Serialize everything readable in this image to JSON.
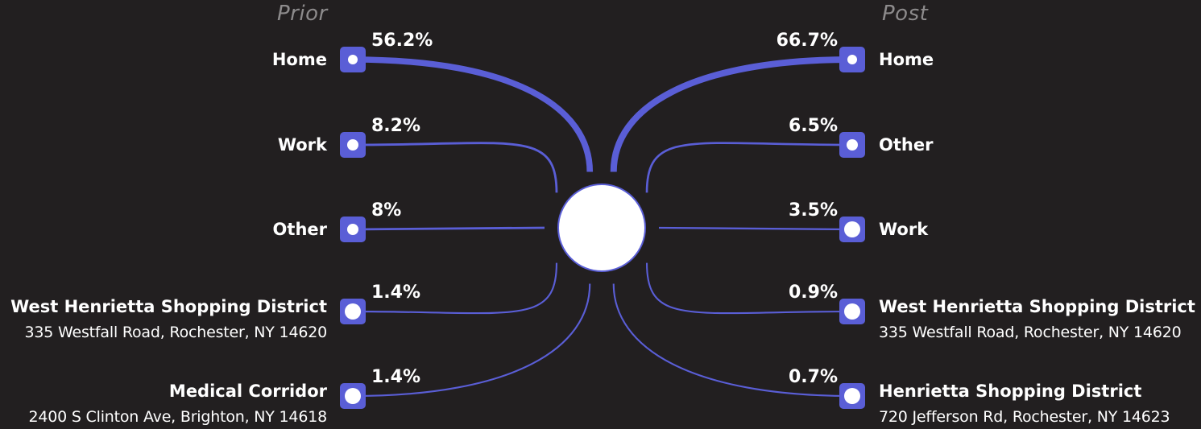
{
  "header": {
    "prior": "Prior",
    "post": "Post"
  },
  "colors": {
    "background": "#221f20",
    "link": "#5a5ed6",
    "node": "#5a5ed6",
    "text": "#ffffff",
    "header": "#8d8b8c"
  },
  "chart_data": {
    "type": "flow",
    "center": "",
    "prior": [
      {
        "label": "Home",
        "value": "56.2%",
        "share": 56.2
      },
      {
        "label": "Work",
        "value": "8.2%",
        "share": 8.2
      },
      {
        "label": "Other",
        "value": "8%",
        "share": 8
      },
      {
        "label": "West Henrietta Shopping District",
        "address": "335 Westfall Road, Rochester, NY 14620",
        "value": "1.4%",
        "share": 1.4
      },
      {
        "label": "Medical Corridor",
        "address": "2400 S Clinton Ave, Brighton, NY 14618",
        "value": "1.4%",
        "share": 1.4
      }
    ],
    "post": [
      {
        "label": "Home",
        "value": "66.7%",
        "share": 66.7
      },
      {
        "label": "Other",
        "value": "6.5%",
        "share": 6.5
      },
      {
        "label": "Work",
        "value": "3.5%",
        "share": 3.5
      },
      {
        "label": "West Henrietta Shopping District",
        "address": "335 Westfall Road, Rochester, NY 14620",
        "value": "0.9%",
        "share": 0.9
      },
      {
        "label": "Henrietta Shopping District",
        "address": "720 Jefferson Rd, Rochester, NY 14623",
        "value": "0.7%",
        "share": 0.7
      }
    ]
  }
}
